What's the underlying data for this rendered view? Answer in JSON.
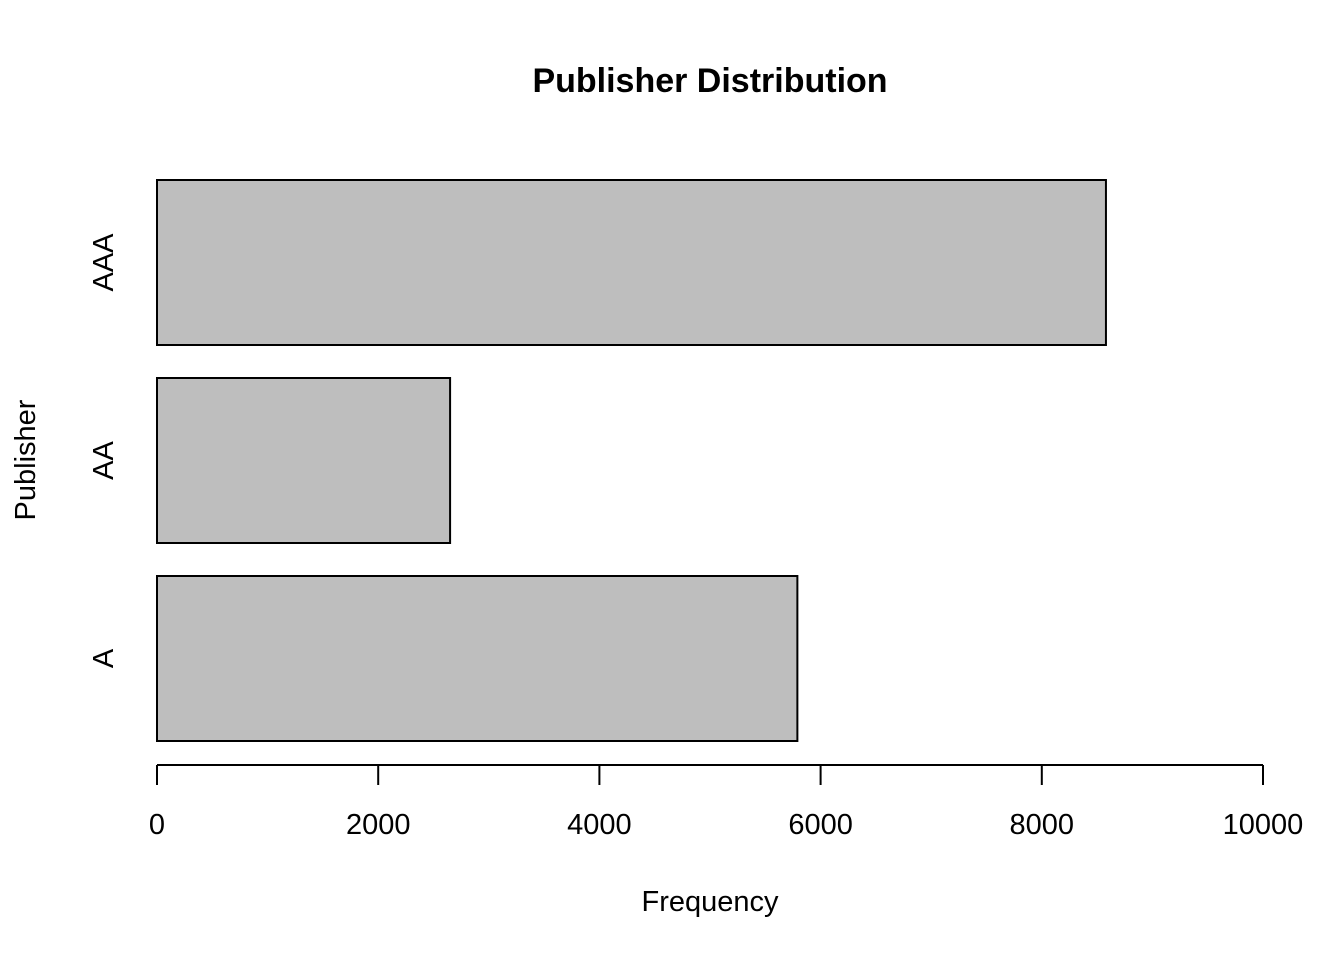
{
  "chart_data": {
    "type": "bar",
    "orientation": "horizontal",
    "title": "Publisher Distribution",
    "xlabel": "Frequency",
    "ylabel": "Publisher",
    "categories": [
      "A",
      "AA",
      "AAA"
    ],
    "values": [
      5790,
      2650,
      8580
    ],
    "xlim": [
      0,
      10000
    ],
    "xticks": [
      0,
      2000,
      4000,
      6000,
      8000,
      10000
    ],
    "grid": false,
    "bar_color": "#bebebe",
    "bar_edge_color": "#000000"
  }
}
